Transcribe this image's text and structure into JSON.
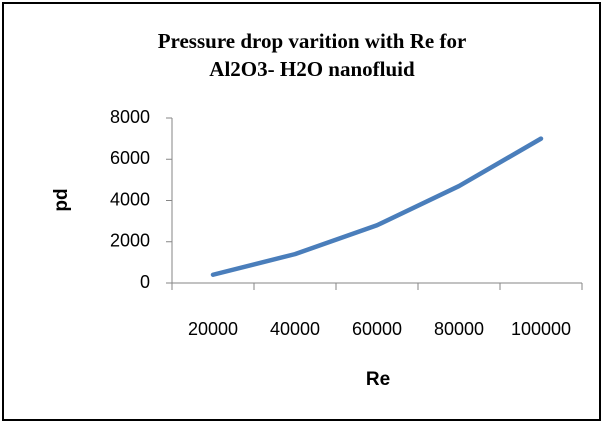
{
  "chart_data": {
    "type": "line",
    "title": [
      "Pressure drop varition with Re for",
      "Al2O3- H2O nanofluid"
    ],
    "x_label": "Re",
    "y_label": "pd",
    "categories": [
      "20000",
      "40000",
      "60000",
      "80000",
      "100000"
    ],
    "series": [
      {
        "name": "pd",
        "color": "#4a7ebb",
        "values": [
          400,
          1400,
          2800,
          4700,
          7000
        ]
      }
    ],
    "ylim": [
      0,
      8000
    ],
    "yticks": [
      0,
      2000,
      4000,
      6000,
      8000
    ],
    "grid": false,
    "legend": false
  }
}
